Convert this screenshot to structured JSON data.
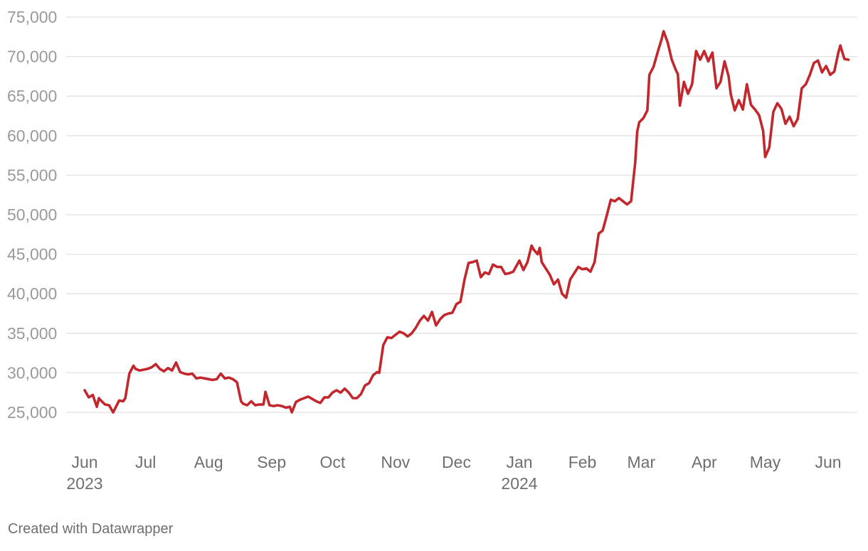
{
  "credit": "Created with Datawrapper",
  "colors": {
    "line": "#c1272d",
    "grid": "#e2e2e2",
    "ytick": "#9a9a9a",
    "xtick": "#6f6f6f"
  },
  "chart_data": {
    "type": "line",
    "title": "",
    "xlabel": "",
    "ylabel": "",
    "ylim": [
      25000,
      75000
    ],
    "yticks": [
      "25,000",
      "30,000",
      "35,000",
      "40,000",
      "45,000",
      "50,000",
      "55,000",
      "60,000",
      "65,000",
      "70,000",
      "75,000"
    ],
    "grid": true,
    "xticks": [
      {
        "date": "2023-06-01",
        "label": "Jun",
        "sub": "2023"
      },
      {
        "date": "2023-07-01",
        "label": "Jul",
        "sub": ""
      },
      {
        "date": "2023-08-01",
        "label": "Aug",
        "sub": ""
      },
      {
        "date": "2023-09-01",
        "label": "Sep",
        "sub": ""
      },
      {
        "date": "2023-10-01",
        "label": "Oct",
        "sub": ""
      },
      {
        "date": "2023-11-01",
        "label": "Nov",
        "sub": ""
      },
      {
        "date": "2023-12-01",
        "label": "Dec",
        "sub": ""
      },
      {
        "date": "2024-01-01",
        "label": "Jan",
        "sub": "2024"
      },
      {
        "date": "2024-02-01",
        "label": "Feb",
        "sub": ""
      },
      {
        "date": "2024-03-01",
        "label": "Mar",
        "sub": ""
      },
      {
        "date": "2024-04-01",
        "label": "Apr",
        "sub": ""
      },
      {
        "date": "2024-05-01",
        "label": "May",
        "sub": ""
      },
      {
        "date": "2024-06-01",
        "label": "Jun",
        "sub": ""
      }
    ],
    "series": [
      {
        "x": [
          "2023-06-01",
          "2023-06-03",
          "2023-06-05",
          "2023-06-07",
          "2023-06-08",
          "2023-06-09",
          "2023-06-11",
          "2023-06-13",
          "2023-06-15",
          "2023-06-16",
          "2023-06-18",
          "2023-06-20",
          "2023-06-21",
          "2023-06-23",
          "2023-06-25",
          "2023-06-26",
          "2023-06-28",
          "2023-06-30",
          "2023-07-02",
          "2023-07-04",
          "2023-07-06",
          "2023-07-08",
          "2023-07-10",
          "2023-07-12",
          "2023-07-14",
          "2023-07-16",
          "2023-07-18",
          "2023-07-20",
          "2023-07-22",
          "2023-07-24",
          "2023-07-26",
          "2023-07-28",
          "2023-07-30",
          "2023-08-01",
          "2023-08-03",
          "2023-08-05",
          "2023-08-07",
          "2023-08-09",
          "2023-08-11",
          "2023-08-13",
          "2023-08-15",
          "2023-08-17",
          "2023-08-18",
          "2023-08-20",
          "2023-08-22",
          "2023-08-24",
          "2023-08-26",
          "2023-08-28",
          "2023-08-29",
          "2023-08-31",
          "2023-09-02",
          "2023-09-04",
          "2023-09-06",
          "2023-09-08",
          "2023-09-10",
          "2023-09-11",
          "2023-09-13",
          "2023-09-15",
          "2023-09-17",
          "2023-09-19",
          "2023-09-21",
          "2023-09-23",
          "2023-09-25",
          "2023-09-27",
          "2023-09-29",
          "2023-10-01",
          "2023-10-03",
          "2023-10-05",
          "2023-10-07",
          "2023-10-09",
          "2023-10-11",
          "2023-10-13",
          "2023-10-15",
          "2023-10-17",
          "2023-10-19",
          "2023-10-21",
          "2023-10-23",
          "2023-10-24",
          "2023-10-26",
          "2023-10-28",
          "2023-10-30",
          "2023-11-01",
          "2023-11-03",
          "2023-11-05",
          "2023-11-07",
          "2023-11-09",
          "2023-11-11",
          "2023-11-13",
          "2023-11-15",
          "2023-11-17",
          "2023-11-19",
          "2023-11-21",
          "2023-11-23",
          "2023-11-25",
          "2023-11-27",
          "2023-11-29",
          "2023-12-01",
          "2023-12-03",
          "2023-12-05",
          "2023-12-07",
          "2023-12-09",
          "2023-12-11",
          "2023-12-13",
          "2023-12-15",
          "2023-12-17",
          "2023-12-19",
          "2023-12-21",
          "2023-12-23",
          "2023-12-25",
          "2023-12-27",
          "2023-12-29",
          "2024-01-01",
          "2024-01-03",
          "2024-01-05",
          "2024-01-07",
          "2024-01-08",
          "2024-01-10",
          "2024-01-11",
          "2024-01-12",
          "2024-01-14",
          "2024-01-16",
          "2024-01-18",
          "2024-01-20",
          "2024-01-22",
          "2024-01-24",
          "2024-01-26",
          "2024-01-28",
          "2024-01-30",
          "2024-02-01",
          "2024-02-03",
          "2024-02-05",
          "2024-02-07",
          "2024-02-09",
          "2024-02-11",
          "2024-02-13",
          "2024-02-15",
          "2024-02-17",
          "2024-02-19",
          "2024-02-21",
          "2024-02-23",
          "2024-02-25",
          "2024-02-27",
          "2024-02-28",
          "2024-02-29",
          "2024-03-02",
          "2024-03-04",
          "2024-03-05",
          "2024-03-07",
          "2024-03-09",
          "2024-03-11",
          "2024-03-12",
          "2024-03-14",
          "2024-03-16",
          "2024-03-18",
          "2024-03-19",
          "2024-03-20",
          "2024-03-22",
          "2024-03-24",
          "2024-03-26",
          "2024-03-28",
          "2024-03-30",
          "2024-04-01",
          "2024-04-03",
          "2024-04-05",
          "2024-04-07",
          "2024-04-09",
          "2024-04-11",
          "2024-04-13",
          "2024-04-14",
          "2024-04-16",
          "2024-04-18",
          "2024-04-20",
          "2024-04-22",
          "2024-04-24",
          "2024-04-26",
          "2024-04-28",
          "2024-04-30",
          "2024-05-01",
          "2024-05-03",
          "2024-05-05",
          "2024-05-07",
          "2024-05-09",
          "2024-05-11",
          "2024-05-13",
          "2024-05-15",
          "2024-05-17",
          "2024-05-19",
          "2024-05-21",
          "2024-05-23",
          "2024-05-25",
          "2024-05-27",
          "2024-05-29",
          "2024-05-31",
          "2024-06-02",
          "2024-06-04",
          "2024-06-06",
          "2024-06-07",
          "2024-06-09",
          "2024-06-11"
        ],
        "values": [
          27800,
          26900,
          27200,
          25700,
          26800,
          26500,
          26000,
          25900,
          25000,
          25500,
          26500,
          26400,
          26800,
          29900,
          30900,
          30500,
          30300,
          30400,
          30500,
          30700,
          31100,
          30500,
          30200,
          30600,
          30300,
          31300,
          30100,
          29900,
          29800,
          29900,
          29300,
          29400,
          29300,
          29200,
          29100,
          29200,
          29900,
          29300,
          29400,
          29200,
          28800,
          26400,
          26100,
          25900,
          26400,
          25900,
          26000,
          26000,
          27600,
          25900,
          25800,
          25900,
          25800,
          25600,
          25700,
          25000,
          26300,
          26600,
          26800,
          27000,
          26700,
          26400,
          26200,
          26900,
          26900,
          27500,
          27800,
          27500,
          28000,
          27500,
          26800,
          26800,
          27300,
          28400,
          28700,
          29700,
          30100,
          30000,
          33500,
          34500,
          34400,
          34800,
          35200,
          35000,
          34600,
          35000,
          35700,
          36600,
          37200,
          36600,
          37700,
          36000,
          36800,
          37300,
          37500,
          37600,
          38700,
          39000,
          41800,
          43900,
          44000,
          44200,
          42100,
          42700,
          42500,
          43700,
          43400,
          43400,
          42500,
          42600,
          42800,
          44200,
          43000,
          44000,
          46100,
          45600,
          45000,
          45800,
          44000,
          43200,
          42400,
          41200,
          41800,
          40000,
          39500,
          41800,
          42600,
          43400,
          43100,
          43200,
          42800,
          44000,
          47600,
          48000,
          49900,
          51900,
          51700,
          52100,
          51700,
          51300,
          51700,
          56600,
          60500,
          61700,
          62200,
          63200,
          67700,
          68700,
          70500,
          72200,
          73200,
          71800,
          69600,
          68300,
          67800,
          63800,
          66800,
          65300,
          66500,
          70700,
          69600,
          70700,
          69400,
          70500,
          66000,
          66800,
          69400,
          67500,
          65300,
          63200,
          64500,
          63300,
          66500,
          63900,
          63300,
          62600,
          60600,
          57300,
          58500,
          63000,
          64100,
          63400,
          61500,
          62400,
          61200,
          62100,
          66000,
          66500,
          67700,
          69200,
          69500,
          68000,
          68800,
          67700,
          68100,
          70500,
          71400,
          69700,
          69600
        ]
      }
    ]
  }
}
